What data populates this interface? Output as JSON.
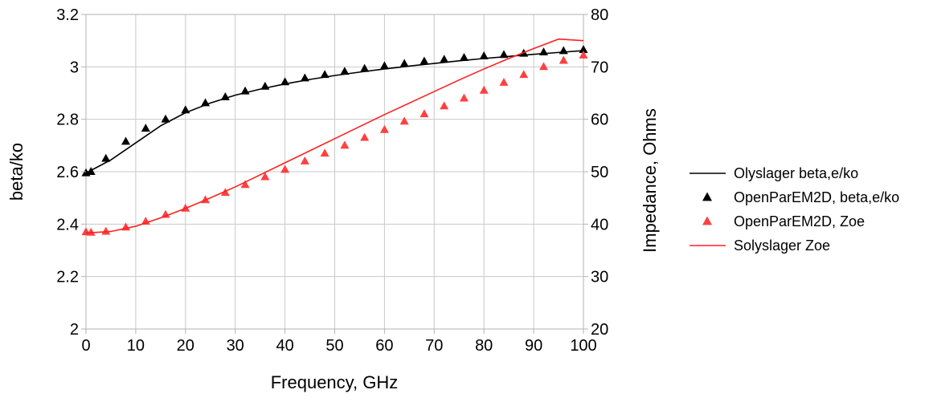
{
  "chart_data": {
    "type": "line",
    "xlabel": "Frequency, GHz",
    "ylabel": "beta/ko",
    "y2label": "Impedance, Ohms",
    "xlim": [
      0,
      100
    ],
    "ylim": [
      2,
      3.2
    ],
    "y2lim": [
      20,
      80
    ],
    "xticks": [
      0,
      10,
      20,
      30,
      40,
      50,
      60,
      70,
      80,
      90,
      100
    ],
    "yticks": [
      2,
      2.2,
      2.4,
      2.6,
      2.8,
      3,
      3.2
    ],
    "y2ticks": [
      20,
      30,
      40,
      50,
      60,
      70,
      80
    ],
    "grid": true,
    "legend_position": "right",
    "series": [
      {
        "name": "Olyslager beta,e/ko",
        "kind": "line",
        "axis": "left",
        "color": "#000000",
        "x": [
          0,
          5,
          10,
          15,
          20,
          25,
          30,
          35,
          40,
          45,
          50,
          55,
          60,
          65,
          70,
          75,
          80,
          85,
          90,
          95,
          100
        ],
        "y": [
          2.595,
          2.645,
          2.71,
          2.775,
          2.825,
          2.862,
          2.892,
          2.915,
          2.935,
          2.952,
          2.967,
          2.98,
          2.992,
          3.003,
          3.013,
          3.023,
          3.032,
          3.04,
          3.048,
          3.055,
          3.062
        ]
      },
      {
        "name": "OpenParEM2D, beta,e/ko",
        "kind": "marker",
        "marker": "triangle",
        "axis": "left",
        "color": "#000000",
        "x": [
          0,
          1,
          4,
          8,
          12,
          16,
          20,
          24,
          28,
          32,
          36,
          40,
          44,
          48,
          52,
          56,
          60,
          64,
          68,
          72,
          76,
          80,
          84,
          88,
          92,
          96,
          100
        ],
        "y": [
          2.595,
          2.6,
          2.65,
          2.715,
          2.765,
          2.8,
          2.835,
          2.862,
          2.885,
          2.907,
          2.925,
          2.942,
          2.957,
          2.97,
          2.982,
          2.993,
          3.003,
          3.012,
          3.021,
          3.028,
          3.035,
          3.041,
          3.046,
          3.051,
          3.056,
          3.061,
          3.065
        ]
      },
      {
        "name": "OpenParEM2D, Zoe",
        "kind": "marker",
        "marker": "triangle",
        "axis": "right",
        "color": "#ff4040",
        "x": [
          0,
          1,
          4,
          8,
          12,
          16,
          20,
          24,
          28,
          32,
          36,
          40,
          44,
          48,
          52,
          56,
          60,
          64,
          68,
          72,
          76,
          80,
          84,
          88,
          92,
          96,
          100
        ],
        "y": [
          38.5,
          38.4,
          38.6,
          39.4,
          40.5,
          41.8,
          43.0,
          44.6,
          46.0,
          47.5,
          49.0,
          50.4,
          52.0,
          53.5,
          55.0,
          56.5,
          58.0,
          59.6,
          61.0,
          62.5,
          64.0,
          65.5,
          67.0,
          68.5,
          70.0,
          71.2,
          72.2
        ]
      },
      {
        "name": "Solyslager Zoe",
        "kind": "line",
        "axis": "right",
        "color": "#ff2020",
        "x": [
          0,
          5,
          10,
          15,
          20,
          25,
          30,
          35,
          40,
          45,
          50,
          55,
          60,
          65,
          70,
          75,
          80,
          85,
          90,
          95,
          100
        ],
        "y": [
          38.3,
          38.6,
          39.6,
          41.2,
          43.0,
          45.0,
          47.1,
          49.4,
          51.7,
          54.0,
          56.3,
          58.6,
          60.9,
          63.1,
          65.3,
          67.5,
          69.6,
          71.6,
          73.5,
          75.3,
          75.0
        ]
      }
    ]
  }
}
